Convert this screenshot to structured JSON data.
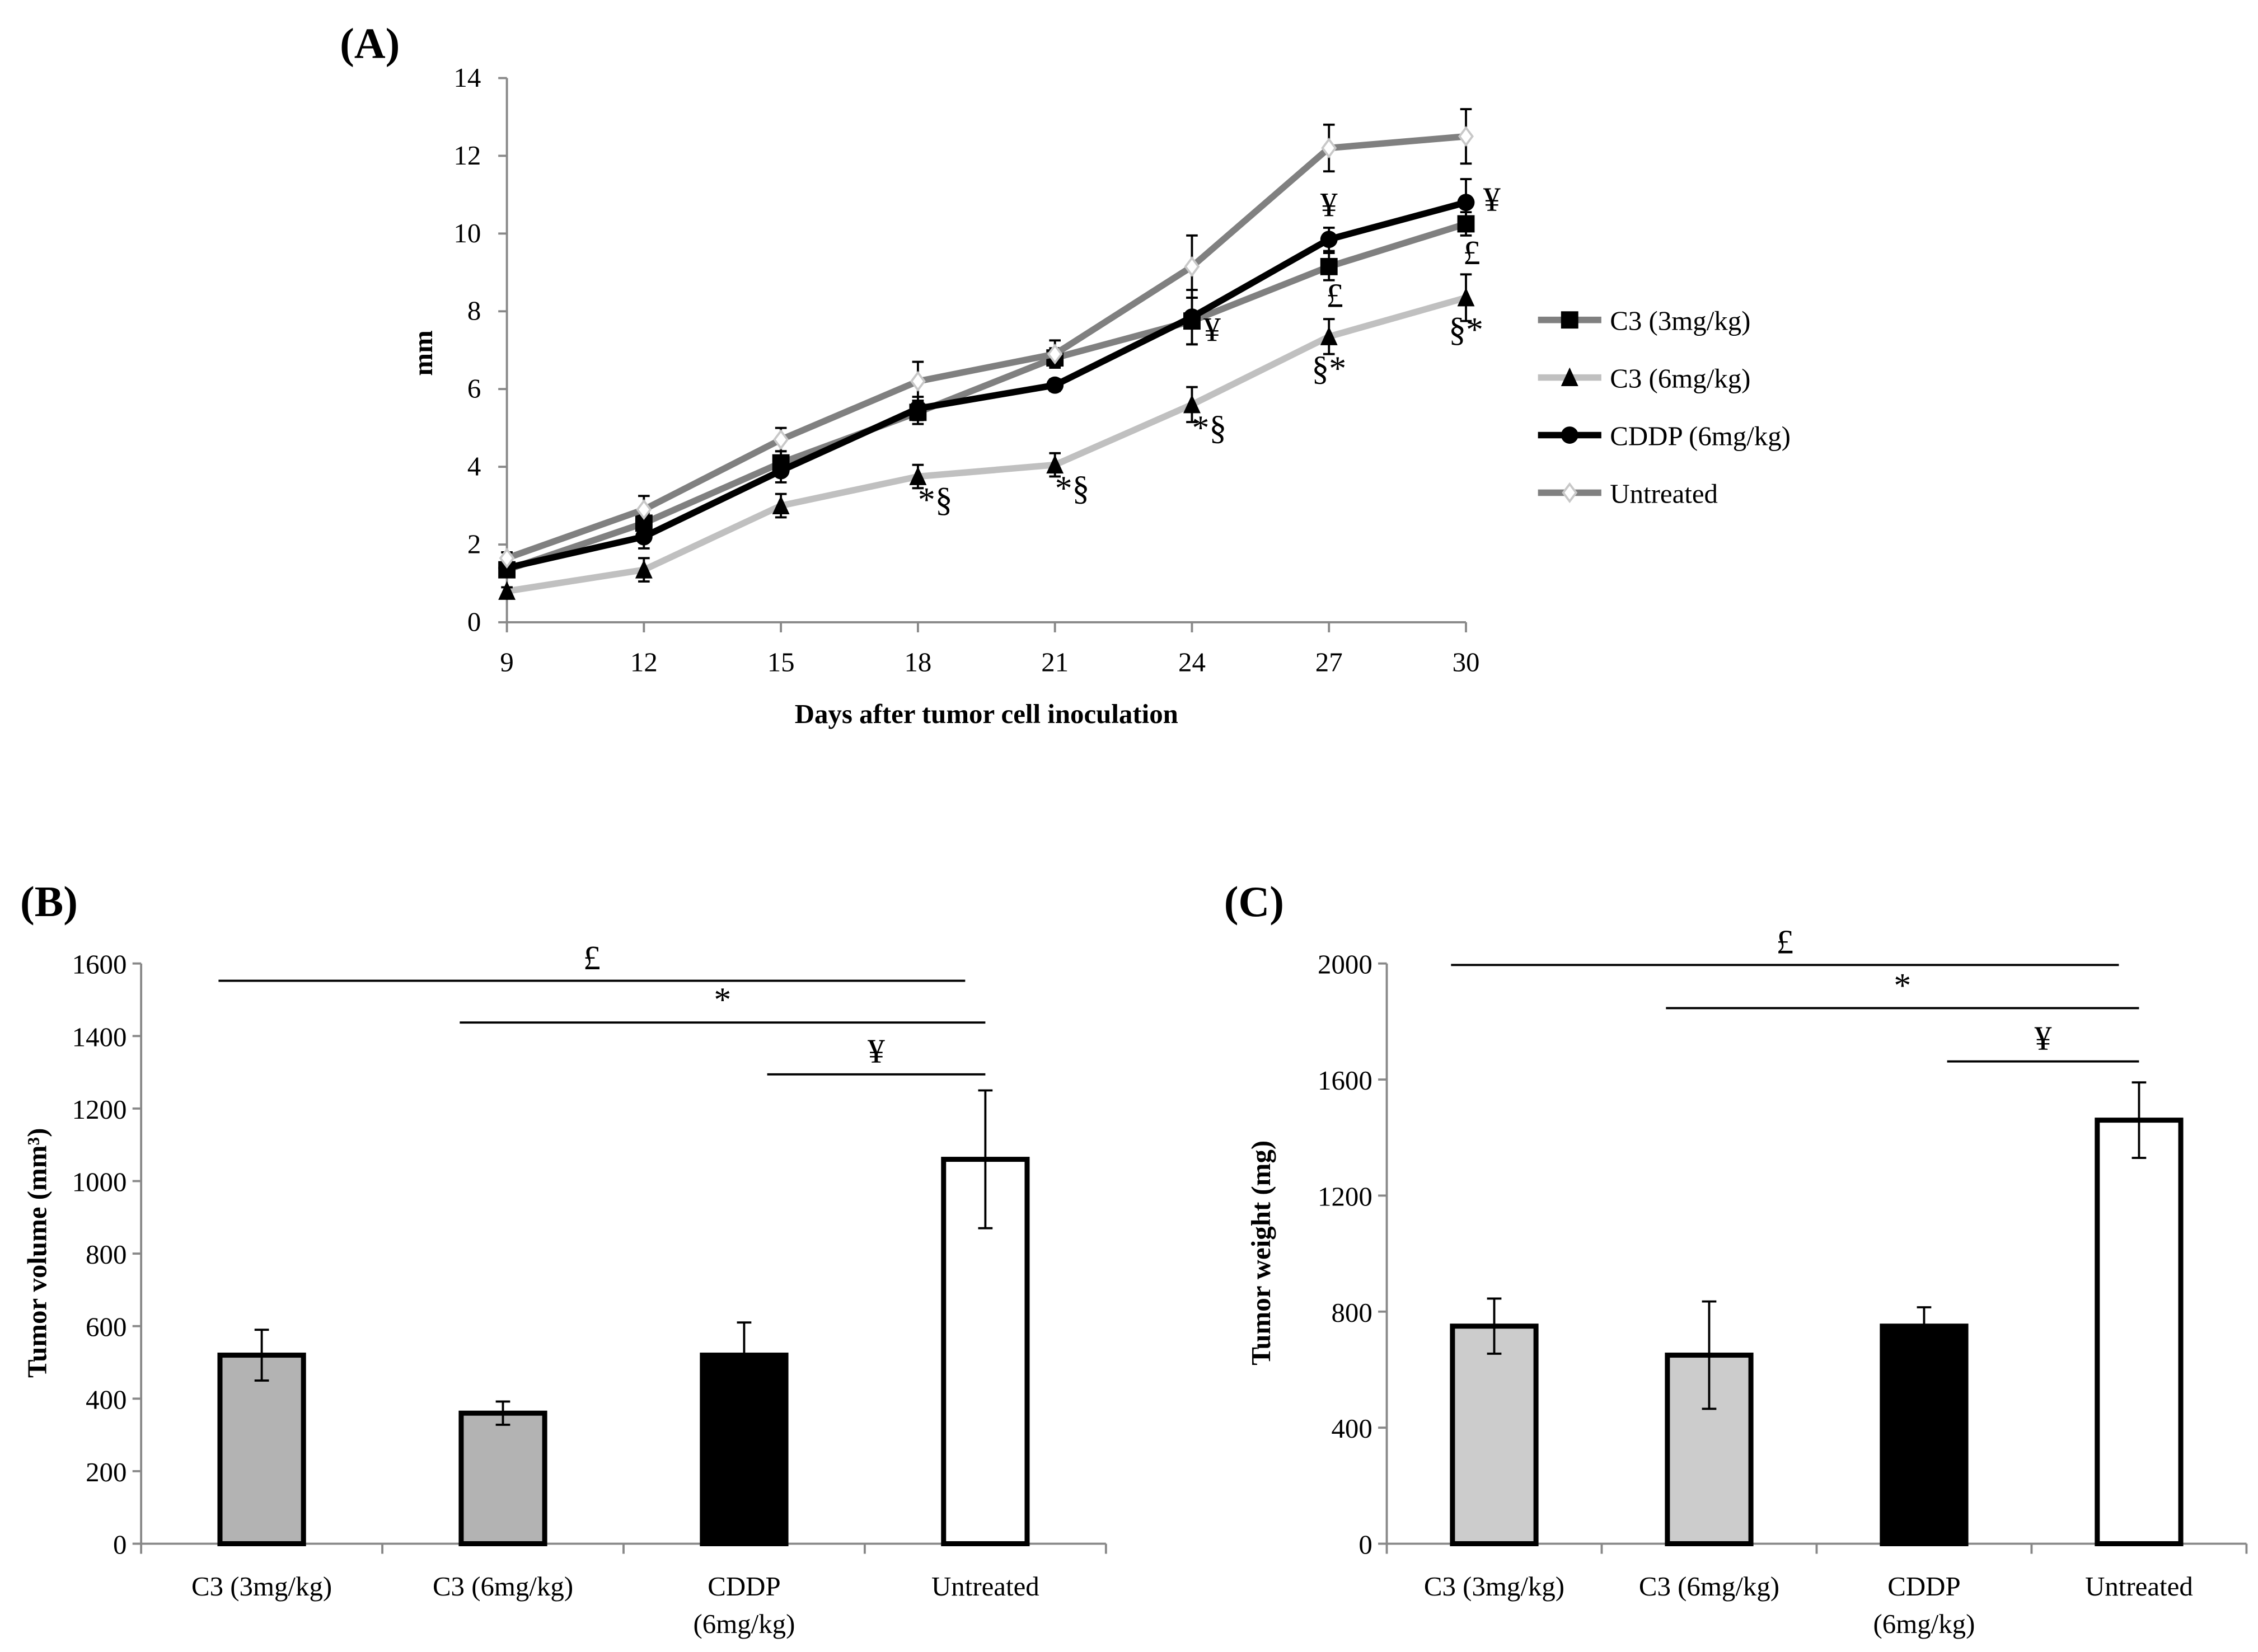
{
  "chart_data": [
    {
      "panel": "(A)",
      "type": "line",
      "xlabel": "Days after tumor cell inoculation",
      "ylabel": "mm",
      "x": [
        9,
        12,
        15,
        18,
        21,
        24,
        27,
        30
      ],
      "ylim": [
        0,
        14
      ],
      "yticks": [
        0,
        2,
        4,
        6,
        8,
        10,
        12,
        14
      ],
      "legend_position": "right",
      "series": [
        {
          "name": "C3 (3mg/kg)",
          "color": "#808080",
          "marker": "square",
          "marker_color": "#000000",
          "values": [
            1.35,
            2.55,
            4.1,
            5.4,
            6.8,
            7.75,
            9.15,
            10.25
          ],
          "errors": [
            0.15,
            0.25,
            0.3,
            0.3,
            0.25,
            0.6,
            0.35,
            0.3
          ]
        },
        {
          "name": "C3 (6mg/kg)",
          "color": "#c0c0c0",
          "marker": "triangle",
          "marker_color": "#000000",
          "values": [
            0.8,
            1.35,
            3.0,
            3.75,
            4.05,
            5.6,
            7.35,
            8.35
          ],
          "errors": [
            0.1,
            0.3,
            0.3,
            0.3,
            0.3,
            0.45,
            0.45,
            0.6
          ]
        },
        {
          "name": "CDDP (6mg/kg)",
          "color": "#000000",
          "marker": "circle",
          "marker_color": "#000000",
          "values": [
            1.4,
            2.2,
            3.9,
            5.5,
            6.1,
            7.85,
            9.85,
            10.8
          ],
          "errors": [
            0.15,
            0.3,
            0.3,
            0.3,
            0.15,
            0.7,
            0.3,
            0.6
          ]
        },
        {
          "name": "Untreated",
          "color": "#808080",
          "marker": "diamond",
          "marker_color": "#c8c8c8",
          "values": [
            1.65,
            2.9,
            4.7,
            6.2,
            6.9,
            9.15,
            12.2,
            12.5
          ],
          "errors": [
            0.15,
            0.35,
            0.3,
            0.5,
            0.35,
            0.8,
            0.6,
            0.7
          ]
        }
      ],
      "annotations": [
        {
          "day": 18,
          "series": 1,
          "text": "*§"
        },
        {
          "day": 21,
          "series": 1,
          "text": "*§"
        },
        {
          "day": 24,
          "series": 1,
          "text": "*§"
        },
        {
          "day": 27,
          "series": 1,
          "text": "§*"
        },
        {
          "day": 30,
          "series": 1,
          "text": "§*"
        },
        {
          "day": 24,
          "series": 0,
          "text": "¥"
        },
        {
          "day": 27,
          "series": 2,
          "text": "¥"
        },
        {
          "day": 30,
          "series": 2,
          "text": "¥"
        },
        {
          "day": 27,
          "series": 0,
          "text": "£"
        },
        {
          "day": 30,
          "series": 0,
          "text": "£"
        }
      ]
    },
    {
      "panel": "(B)",
      "type": "bar",
      "ylabel": "Tumor volume (mm³)",
      "xlabel": "",
      "ylim": [
        0,
        1600
      ],
      "yticks": [
        0,
        200,
        400,
        600,
        800,
        1000,
        1200,
        1400,
        1600
      ],
      "categories": [
        [
          "C3 (3mg/kg)"
        ],
        [
          "C3 (6mg/kg)"
        ],
        [
          "CDDP",
          "(6mg/kg)"
        ],
        [
          "Untreated"
        ]
      ],
      "values": [
        520,
        360,
        520,
        1060
      ],
      "errors": [
        70,
        32,
        90,
        190
      ],
      "colors": [
        "#b3b3b3",
        "#b3b3b3",
        "#000000",
        "#ffffff"
      ],
      "significance": [
        {
          "text": "£",
          "from": 0,
          "to": 3
        },
        {
          "text": "*",
          "from": 1,
          "to": 3
        },
        {
          "text": "¥",
          "from": 2,
          "to": 3
        }
      ]
    },
    {
      "panel": "(C)",
      "type": "bar",
      "ylabel": "Tumor weight (mg)",
      "xlabel": "",
      "ylim": [
        0,
        2000
      ],
      "yticks": [
        0,
        400,
        800,
        1200,
        1600,
        2000
      ],
      "categories": [
        [
          "C3 (3mg/kg)"
        ],
        [
          "C3 (6mg/kg)"
        ],
        [
          "CDDP",
          "(6mg/kg)"
        ],
        [
          "Untreated"
        ]
      ],
      "values": [
        750,
        650,
        750,
        1460
      ],
      "errors": [
        95,
        185,
        65,
        130
      ],
      "colors": [
        "#cccccc",
        "#cccccc",
        "#000000",
        "#ffffff"
      ],
      "significance": [
        {
          "text": "£",
          "from": 0,
          "to": 3
        },
        {
          "text": "*",
          "from": 1,
          "to": 3
        },
        {
          "text": "¥",
          "from": 2,
          "to": 3
        }
      ]
    }
  ]
}
